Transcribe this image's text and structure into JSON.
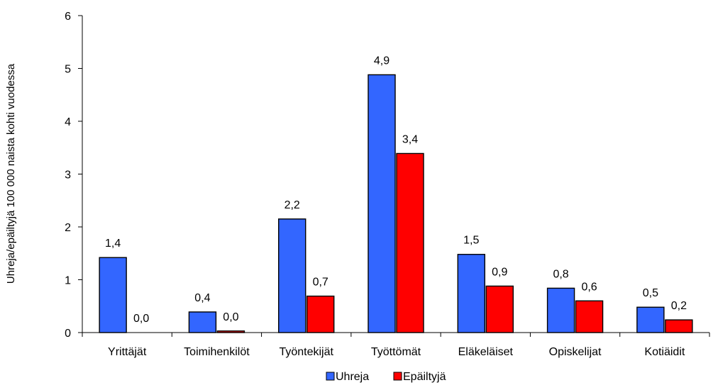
{
  "chart_data": {
    "type": "bar",
    "title": "",
    "xlabel": "",
    "ylabel": "Uhreja/epäiltyjä 100 000 naista kohti vuodessa",
    "ylim": [
      0,
      6
    ],
    "yticks": [
      "0",
      "1",
      "2",
      "3",
      "4",
      "5",
      "6"
    ],
    "grid": false,
    "legend_position": "bottom",
    "categories": [
      "Yrittäjät",
      "Toimihenkilöt",
      "Työntekijät",
      "Työttömät",
      "Eläkeläiset",
      "Opiskelijat",
      "Kotiäidit"
    ],
    "series": [
      {
        "name": "Uhreja",
        "color": "#3366ff",
        "values": [
          1.42,
          0.39,
          2.15,
          4.88,
          1.48,
          0.84,
          0.48
        ],
        "labels": [
          "1,4",
          "0,4",
          "2,2",
          "4,9",
          "1,5",
          "0,8",
          "0,5"
        ]
      },
      {
        "name": "Epäiltyjä",
        "color": "#ff0000",
        "values": [
          0.0,
          0.03,
          0.69,
          3.39,
          0.88,
          0.6,
          0.24
        ],
        "labels": [
          "0,0",
          "0,0",
          "0,7",
          "3,4",
          "0,9",
          "0,6",
          "0,2"
        ]
      }
    ]
  }
}
